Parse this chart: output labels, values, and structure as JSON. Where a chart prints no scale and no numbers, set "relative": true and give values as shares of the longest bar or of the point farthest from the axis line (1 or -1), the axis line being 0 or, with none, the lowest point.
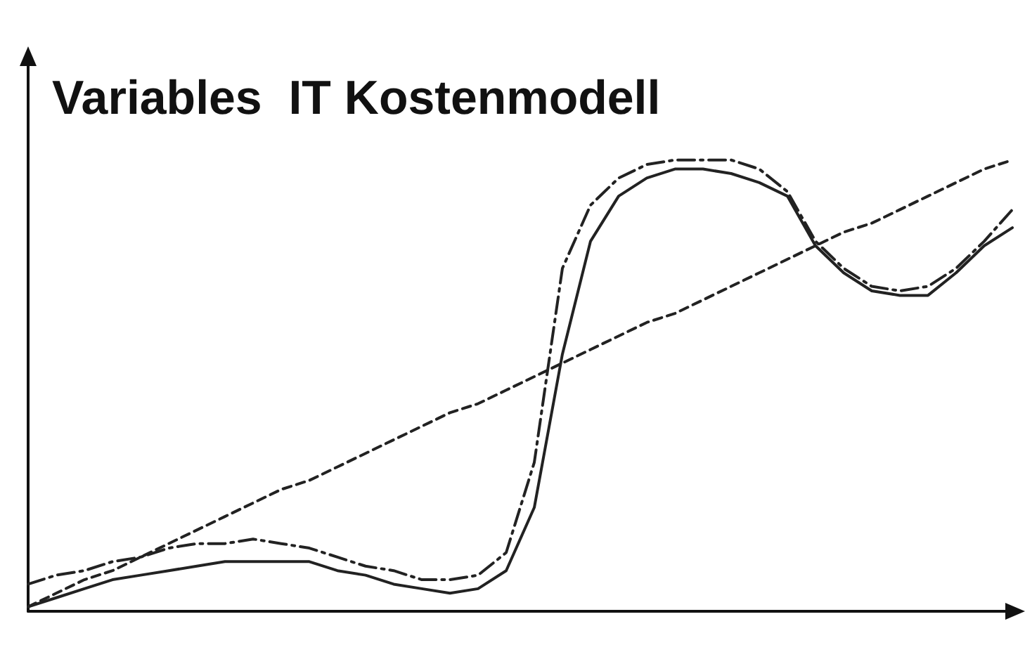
{
  "chart_data": {
    "type": "line",
    "title": "Variables  IT Kostenmodell",
    "relative": true,
    "grid": false,
    "marker": "none",
    "categories": [
      null,
      null,
      null,
      null,
      null,
      null,
      null,
      null,
      null,
      null,
      null,
      null,
      null,
      null,
      null,
      null,
      null,
      null,
      null,
      null,
      null,
      null,
      null,
      null,
      null,
      null,
      null,
      null,
      null,
      null,
      null,
      null,
      null,
      null,
      null,
      null
    ],
    "series": [
      {
        "color": "#222222",
        "line_style": "solid",
        "values": [
          0.01,
          0.03,
          0.05,
          0.07,
          0.08,
          0.09,
          0.1,
          0.11,
          0.11,
          0.11,
          0.11,
          0.09,
          0.08,
          0.06,
          0.05,
          0.04,
          0.05,
          0.09,
          0.23,
          0.57,
          0.82,
          0.92,
          0.96,
          0.98,
          0.98,
          0.97,
          0.95,
          0.92,
          0.81,
          0.75,
          0.71,
          0.7,
          0.7,
          0.75,
          0.81,
          0.85
        ]
      },
      {
        "color": "#222222",
        "line_style": "dashdot",
        "values": [
          0.06,
          0.08,
          0.09,
          0.11,
          0.12,
          0.14,
          0.15,
          0.15,
          0.16,
          0.15,
          0.14,
          0.12,
          0.1,
          0.09,
          0.07,
          0.07,
          0.08,
          0.13,
          0.33,
          0.76,
          0.9,
          0.96,
          0.99,
          1.0,
          1.0,
          1.0,
          0.98,
          0.93,
          0.82,
          0.76,
          0.72,
          0.71,
          0.72,
          0.76,
          0.82,
          0.89
        ]
      },
      {
        "color": "#222222",
        "line_style": "dashed",
        "values": [
          0.01,
          0.04,
          0.07,
          0.09,
          0.12,
          0.15,
          0.18,
          0.21,
          0.24,
          0.27,
          0.29,
          0.32,
          0.35,
          0.38,
          0.41,
          0.44,
          0.46,
          0.49,
          0.52,
          0.55,
          0.58,
          0.61,
          0.64,
          0.66,
          0.69,
          0.72,
          0.75,
          0.78,
          0.81,
          0.84,
          0.86,
          0.89,
          0.92,
          0.95,
          0.98,
          1.0
        ]
      }
    ]
  }
}
